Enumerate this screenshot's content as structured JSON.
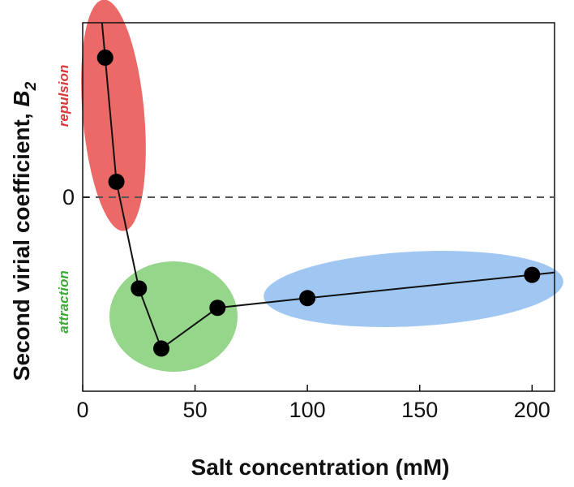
{
  "chart_data": {
    "type": "line",
    "title": "",
    "xlabel": "Salt concentration (mM)",
    "ylabel": "Second virial coefficient, ",
    "ylabel_symbol": "B",
    "ylabel_subscript": "2",
    "xlim": [
      0,
      210
    ],
    "ylim": [
      -1.0,
      0.9
    ],
    "x_ticks": [
      0,
      50,
      100,
      150,
      200
    ],
    "x_tick_labels": [
      "0",
      "50",
      "100",
      "150",
      "200"
    ],
    "y_ticks": [
      0
    ],
    "y_tick_labels": [
      "0"
    ],
    "grid": false,
    "zero_line": "dashed",
    "series": [
      {
        "x": [
          10,
          15,
          25,
          35,
          60,
          100,
          200
        ],
        "y": [
          0.72,
          0.08,
          -0.47,
          -0.78,
          -0.57,
          -0.52,
          -0.4
        ]
      }
    ],
    "regions": [
      {
        "label": "repulsion",
        "color": "#e8504e",
        "label_color": "#d63a3a"
      },
      {
        "label": "attraction",
        "color": "#7ccc6e",
        "label_color": "#3cab33"
      },
      {
        "label": "",
        "color": "#8fbdf0",
        "label_color": ""
      }
    ],
    "colors": {
      "line": "#111111",
      "marker": "#000000",
      "zero_line": "#555555"
    }
  }
}
